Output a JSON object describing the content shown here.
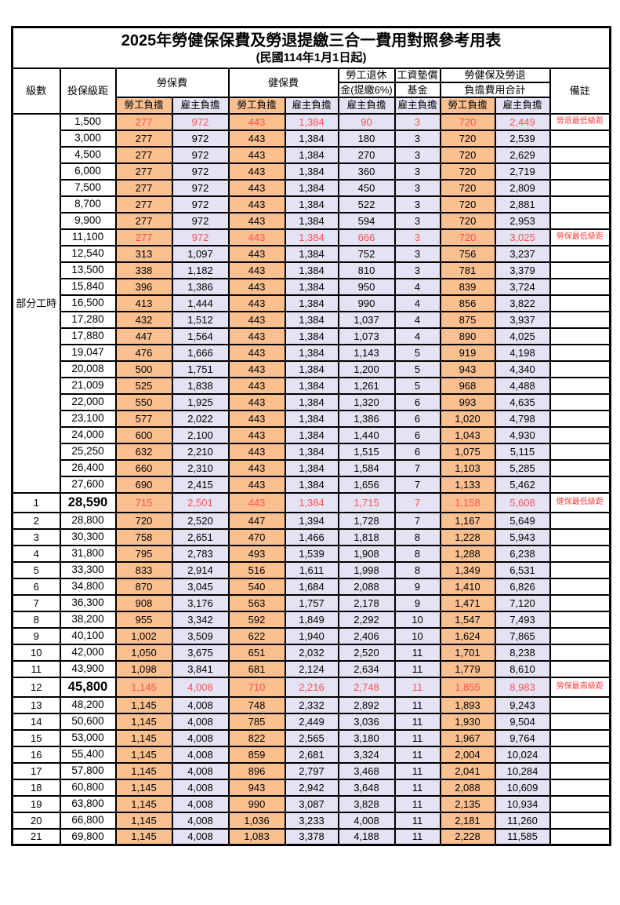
{
  "title": "2025年勞健保保費及勞退提繳三合一費用對照參考用表",
  "subtitle": "(民國114年1月1日起)",
  "colors": {
    "employee_bg": "#FAC090",
    "employer_bg": "#E4E3F3",
    "highlight_text": "#FF5050",
    "remark_text": "#FF4040",
    "border": "#000000"
  },
  "header": {
    "level": "級數",
    "bracket": "投保級距",
    "labor_fee": "勞保費",
    "health_fee": "健保費",
    "pension_line1": "勞工退休",
    "pension_line2": "金(提繳6%)",
    "fund_line1": "工資墊償",
    "fund_line2": "基金",
    "total_line1": "勞健保及勞退",
    "total_line2": "負擔費用合計",
    "remark": "備註",
    "employee_label": "勞工負擔",
    "employer_label": "雇主負擔"
  },
  "part_time_label": "部分工時",
  "part_time_rowspan": 23,
  "value_col_classes": [
    "emp",
    "er",
    "emp",
    "er",
    "er",
    "er",
    "emp",
    "er"
  ],
  "rows": [
    {
      "level": "",
      "bracket": "1,500",
      "values": [
        "277",
        "972",
        "443",
        "1,384",
        "90",
        "3",
        "720",
        "2,449"
      ],
      "remark": "勞退最低級距",
      "highlight": true,
      "tall": false
    },
    {
      "level": "",
      "bracket": "3,000",
      "values": [
        "277",
        "972",
        "443",
        "1,384",
        "180",
        "3",
        "720",
        "2,539"
      ],
      "remark": "",
      "highlight": false,
      "tall": false
    },
    {
      "level": "",
      "bracket": "4,500",
      "values": [
        "277",
        "972",
        "443",
        "1,384",
        "270",
        "3",
        "720",
        "2,629"
      ],
      "remark": "",
      "highlight": false,
      "tall": false
    },
    {
      "level": "",
      "bracket": "6,000",
      "values": [
        "277",
        "972",
        "443",
        "1,384",
        "360",
        "3",
        "720",
        "2,719"
      ],
      "remark": "",
      "highlight": false,
      "tall": false
    },
    {
      "level": "",
      "bracket": "7,500",
      "values": [
        "277",
        "972",
        "443",
        "1,384",
        "450",
        "3",
        "720",
        "2,809"
      ],
      "remark": "",
      "highlight": false,
      "tall": false
    },
    {
      "level": "",
      "bracket": "8,700",
      "values": [
        "277",
        "972",
        "443",
        "1,384",
        "522",
        "3",
        "720",
        "2,881"
      ],
      "remark": "",
      "highlight": false,
      "tall": false
    },
    {
      "level": "",
      "bracket": "9,900",
      "values": [
        "277",
        "972",
        "443",
        "1,384",
        "594",
        "3",
        "720",
        "2,953"
      ],
      "remark": "",
      "highlight": false,
      "tall": false
    },
    {
      "level": "",
      "bracket": "11,100",
      "values": [
        "277",
        "972",
        "443",
        "1,384",
        "666",
        "3",
        "720",
        "3,025"
      ],
      "remark": "勞保最低級距",
      "highlight": true,
      "tall": false
    },
    {
      "level": "",
      "bracket": "12,540",
      "values": [
        "313",
        "1,097",
        "443",
        "1,384",
        "752",
        "3",
        "756",
        "3,237"
      ],
      "remark": "",
      "highlight": false,
      "tall": false
    },
    {
      "level": "",
      "bracket": "13,500",
      "values": [
        "338",
        "1,182",
        "443",
        "1,384",
        "810",
        "3",
        "781",
        "3,379"
      ],
      "remark": "",
      "highlight": false,
      "tall": false
    },
    {
      "level": "",
      "bracket": "15,840",
      "values": [
        "396",
        "1,386",
        "443",
        "1,384",
        "950",
        "4",
        "839",
        "3,724"
      ],
      "remark": "",
      "highlight": false,
      "tall": false
    },
    {
      "level": "",
      "bracket": "16,500",
      "values": [
        "413",
        "1,444",
        "443",
        "1,384",
        "990",
        "4",
        "856",
        "3,822"
      ],
      "remark": "",
      "highlight": false,
      "tall": false
    },
    {
      "level": "",
      "bracket": "17,280",
      "values": [
        "432",
        "1,512",
        "443",
        "1,384",
        "1,037",
        "4",
        "875",
        "3,937"
      ],
      "remark": "",
      "highlight": false,
      "tall": false
    },
    {
      "level": "",
      "bracket": "17,880",
      "values": [
        "447",
        "1,564",
        "443",
        "1,384",
        "1,073",
        "4",
        "890",
        "4,025"
      ],
      "remark": "",
      "highlight": false,
      "tall": false
    },
    {
      "level": "",
      "bracket": "19,047",
      "values": [
        "476",
        "1,666",
        "443",
        "1,384",
        "1,143",
        "5",
        "919",
        "4,198"
      ],
      "remark": "",
      "highlight": false,
      "tall": false
    },
    {
      "level": "",
      "bracket": "20,008",
      "values": [
        "500",
        "1,751",
        "443",
        "1,384",
        "1,200",
        "5",
        "943",
        "4,340"
      ],
      "remark": "",
      "highlight": false,
      "tall": false
    },
    {
      "level": "",
      "bracket": "21,009",
      "values": [
        "525",
        "1,838",
        "443",
        "1,384",
        "1,261",
        "5",
        "968",
        "4,488"
      ],
      "remark": "",
      "highlight": false,
      "tall": false
    },
    {
      "level": "",
      "bracket": "22,000",
      "values": [
        "550",
        "1,925",
        "443",
        "1,384",
        "1,320",
        "6",
        "993",
        "4,635"
      ],
      "remark": "",
      "highlight": false,
      "tall": false
    },
    {
      "level": "",
      "bracket": "23,100",
      "values": [
        "577",
        "2,022",
        "443",
        "1,384",
        "1,386",
        "6",
        "1,020",
        "4,798"
      ],
      "remark": "",
      "highlight": false,
      "tall": false
    },
    {
      "level": "",
      "bracket": "24,000",
      "values": [
        "600",
        "2,100",
        "443",
        "1,384",
        "1,440",
        "6",
        "1,043",
        "4,930"
      ],
      "remark": "",
      "highlight": false,
      "tall": false
    },
    {
      "level": "",
      "bracket": "25,250",
      "values": [
        "632",
        "2,210",
        "443",
        "1,384",
        "1,515",
        "6",
        "1,075",
        "5,115"
      ],
      "remark": "",
      "highlight": false,
      "tall": false
    },
    {
      "level": "",
      "bracket": "26,400",
      "values": [
        "660",
        "2,310",
        "443",
        "1,384",
        "1,584",
        "7",
        "1,103",
        "5,285"
      ],
      "remark": "",
      "highlight": false,
      "tall": false
    },
    {
      "level": "",
      "bracket": "27,600",
      "values": [
        "690",
        "2,415",
        "443",
        "1,384",
        "1,656",
        "7",
        "1,133",
        "5,462"
      ],
      "remark": "",
      "highlight": false,
      "tall": false
    },
    {
      "level": "1",
      "bracket": "28,590",
      "values": [
        "715",
        "2,501",
        "443",
        "1,384",
        "1,715",
        "7",
        "1,158",
        "5,608"
      ],
      "remark": "健保最低級距",
      "highlight": true,
      "tall": true,
      "big": true
    },
    {
      "level": "2",
      "bracket": "28,800",
      "values": [
        "720",
        "2,520",
        "447",
        "1,394",
        "1,728",
        "7",
        "1,167",
        "5,649"
      ],
      "remark": "",
      "highlight": false,
      "tall": false
    },
    {
      "level": "3",
      "bracket": "30,300",
      "values": [
        "758",
        "2,651",
        "470",
        "1,466",
        "1,818",
        "8",
        "1,228",
        "5,943"
      ],
      "remark": "",
      "highlight": false,
      "tall": false
    },
    {
      "level": "4",
      "bracket": "31,800",
      "values": [
        "795",
        "2,783",
        "493",
        "1,539",
        "1,908",
        "8",
        "1,288",
        "6,238"
      ],
      "remark": "",
      "highlight": false,
      "tall": false
    },
    {
      "level": "5",
      "bracket": "33,300",
      "values": [
        "833",
        "2,914",
        "516",
        "1,611",
        "1,998",
        "8",
        "1,349",
        "6,531"
      ],
      "remark": "",
      "highlight": false,
      "tall": false
    },
    {
      "level": "6",
      "bracket": "34,800",
      "values": [
        "870",
        "3,045",
        "540",
        "1,684",
        "2,088",
        "9",
        "1,410",
        "6,826"
      ],
      "remark": "",
      "highlight": false,
      "tall": false
    },
    {
      "level": "7",
      "bracket": "36,300",
      "values": [
        "908",
        "3,176",
        "563",
        "1,757",
        "2,178",
        "9",
        "1,471",
        "7,120"
      ],
      "remark": "",
      "highlight": false,
      "tall": false
    },
    {
      "level": "8",
      "bracket": "38,200",
      "values": [
        "955",
        "3,342",
        "592",
        "1,849",
        "2,292",
        "10",
        "1,547",
        "7,493"
      ],
      "remark": "",
      "highlight": false,
      "tall": false
    },
    {
      "level": "9",
      "bracket": "40,100",
      "values": [
        "1,002",
        "3,509",
        "622",
        "1,940",
        "2,406",
        "10",
        "1,624",
        "7,865"
      ],
      "remark": "",
      "highlight": false,
      "tall": false
    },
    {
      "level": "10",
      "bracket": "42,000",
      "values": [
        "1,050",
        "3,675",
        "651",
        "2,032",
        "2,520",
        "11",
        "1,701",
        "8,238"
      ],
      "remark": "",
      "highlight": false,
      "tall": false
    },
    {
      "level": "11",
      "bracket": "43,900",
      "values": [
        "1,098",
        "3,841",
        "681",
        "2,124",
        "2,634",
        "11",
        "1,779",
        "8,610"
      ],
      "remark": "",
      "highlight": false,
      "tall": false
    },
    {
      "level": "12",
      "bracket": "45,800",
      "values": [
        "1,145",
        "4,008",
        "710",
        "2,216",
        "2,748",
        "11",
        "1,855",
        "8,983"
      ],
      "remark": "勞保最高級距",
      "highlight": true,
      "tall": true,
      "big": true
    },
    {
      "level": "13",
      "bracket": "48,200",
      "values": [
        "1,145",
        "4,008",
        "748",
        "2,332",
        "2,892",
        "11",
        "1,893",
        "9,243"
      ],
      "remark": "",
      "highlight": false,
      "tall": false
    },
    {
      "level": "14",
      "bracket": "50,600",
      "values": [
        "1,145",
        "4,008",
        "785",
        "2,449",
        "3,036",
        "11",
        "1,930",
        "9,504"
      ],
      "remark": "",
      "highlight": false,
      "tall": false
    },
    {
      "level": "15",
      "bracket": "53,000",
      "values": [
        "1,145",
        "4,008",
        "822",
        "2,565",
        "3,180",
        "11",
        "1,967",
        "9,764"
      ],
      "remark": "",
      "highlight": false,
      "tall": false
    },
    {
      "level": "16",
      "bracket": "55,400",
      "values": [
        "1,145",
        "4,008",
        "859",
        "2,681",
        "3,324",
        "11",
        "2,004",
        "10,024"
      ],
      "remark": "",
      "highlight": false,
      "tall": false
    },
    {
      "level": "17",
      "bracket": "57,800",
      "values": [
        "1,145",
        "4,008",
        "896",
        "2,797",
        "3,468",
        "11",
        "2,041",
        "10,284"
      ],
      "remark": "",
      "highlight": false,
      "tall": false
    },
    {
      "level": "18",
      "bracket": "60,800",
      "values": [
        "1,145",
        "4,008",
        "943",
        "2,942",
        "3,648",
        "11",
        "2,088",
        "10,609"
      ],
      "remark": "",
      "highlight": false,
      "tall": false
    },
    {
      "level": "19",
      "bracket": "63,800",
      "values": [
        "1,145",
        "4,008",
        "990",
        "3,087",
        "3,828",
        "11",
        "2,135",
        "10,934"
      ],
      "remark": "",
      "highlight": false,
      "tall": false
    },
    {
      "level": "20",
      "bracket": "66,800",
      "values": [
        "1,145",
        "4,008",
        "1,036",
        "3,233",
        "4,008",
        "11",
        "2,181",
        "11,260"
      ],
      "remark": "",
      "highlight": false,
      "tall": false
    },
    {
      "level": "21",
      "bracket": "69,800",
      "values": [
        "1,145",
        "4,008",
        "1,083",
        "3,378",
        "4,188",
        "11",
        "2,228",
        "11,585"
      ],
      "remark": "",
      "highlight": false,
      "tall": false
    }
  ]
}
